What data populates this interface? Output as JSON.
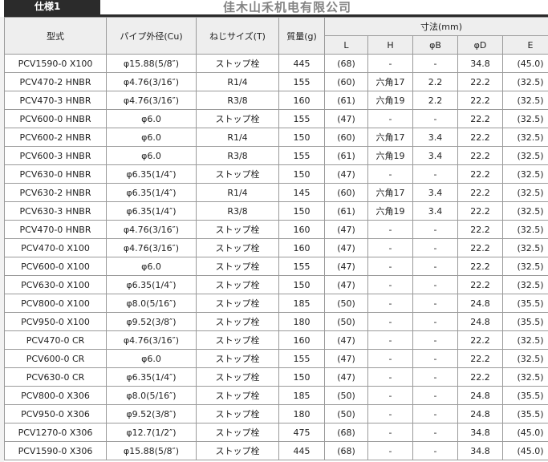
{
  "tab": {
    "label": "仕様1"
  },
  "headers": {
    "model": "型式",
    "pipe": "パイプ外径(Cu)",
    "thread": "ねじサイズ(T)",
    "mass": "質量(g)",
    "dims": "寸法(mm)",
    "sub": [
      "L",
      "H",
      "φB",
      "φD",
      "E"
    ]
  },
  "rows": [
    [
      "PCV1590-0 X100",
      "φ15.88(5/8″)",
      "ストップ栓",
      "445",
      "(68)",
      "-",
      "-",
      "34.8",
      "(45.0)"
    ],
    [
      "PCV470-2 HNBR",
      "φ4.76(3/16″)",
      "R1/4",
      "155",
      "(60)",
      "六角17",
      "2.2",
      "22.2",
      "(32.5)"
    ],
    [
      "PCV470-3 HNBR",
      "φ4.76(3/16″)",
      "R3/8",
      "160",
      "(61)",
      "六角19",
      "2.2",
      "22.2",
      "(32.5)"
    ],
    [
      "PCV600-0 HNBR",
      "φ6.0",
      "ストップ栓",
      "155",
      "(47)",
      "-",
      "-",
      "22.2",
      "(32.5)"
    ],
    [
      "PCV600-2 HNBR",
      "φ6.0",
      "R1/4",
      "150",
      "(60)",
      "六角17",
      "3.4",
      "22.2",
      "(32.5)"
    ],
    [
      "PCV600-3 HNBR",
      "φ6.0",
      "R3/8",
      "155",
      "(61)",
      "六角19",
      "3.4",
      "22.2",
      "(32.5)"
    ],
    [
      "PCV630-0 HNBR",
      "φ6.35(1/4″)",
      "ストップ栓",
      "150",
      "(47)",
      "-",
      "-",
      "22.2",
      "(32.5)"
    ],
    [
      "PCV630-2 HNBR",
      "φ6.35(1/4″)",
      "R1/4",
      "145",
      "(60)",
      "六角17",
      "3.4",
      "22.2",
      "(32.5)"
    ],
    [
      "PCV630-3 HNBR",
      "φ6.35(1/4″)",
      "R3/8",
      "150",
      "(61)",
      "六角19",
      "3.4",
      "22.2",
      "(32.5)"
    ],
    [
      "PCV470-0 HNBR",
      "φ4.76(3/16″)",
      "ストップ栓",
      "160",
      "(47)",
      "-",
      "-",
      "22.2",
      "(32.5)"
    ],
    [
      "PCV470-0 X100",
      "φ4.76(3/16″)",
      "ストップ栓",
      "160",
      "(47)",
      "-",
      "-",
      "22.2",
      "(32.5)"
    ],
    [
      "PCV600-0 X100",
      "φ6.0",
      "ストップ栓",
      "155",
      "(47)",
      "-",
      "-",
      "22.2",
      "(32.5)"
    ],
    [
      "PCV630-0 X100",
      "φ6.35(1/4″)",
      "ストップ栓",
      "150",
      "(47)",
      "-",
      "-",
      "22.2",
      "(32.5)"
    ],
    [
      "PCV800-0 X100",
      "φ8.0(5/16″)",
      "ストップ栓",
      "185",
      "(50)",
      "-",
      "-",
      "24.8",
      "(35.5)"
    ],
    [
      "PCV950-0 X100",
      "φ9.52(3/8″)",
      "ストップ栓",
      "180",
      "(50)",
      "-",
      "-",
      "24.8",
      "(35.5)"
    ],
    [
      "PCV470-0 CR",
      "φ4.76(3/16″)",
      "ストップ栓",
      "160",
      "(47)",
      "-",
      "-",
      "22.2",
      "(32.5)"
    ],
    [
      "PCV600-0 CR",
      "φ6.0",
      "ストップ栓",
      "155",
      "(47)",
      "-",
      "-",
      "22.2",
      "(32.5)"
    ],
    [
      "PCV630-0 CR",
      "φ6.35(1/4″)",
      "ストップ栓",
      "150",
      "(47)",
      "-",
      "-",
      "22.2",
      "(32.5)"
    ],
    [
      "PCV800-0 X306",
      "φ8.0(5/16″)",
      "ストップ栓",
      "185",
      "(50)",
      "-",
      "-",
      "24.8",
      "(35.5)"
    ],
    [
      "PCV950-0 X306",
      "φ9.52(3/8″)",
      "ストップ栓",
      "180",
      "(50)",
      "-",
      "-",
      "24.8",
      "(35.5)"
    ],
    [
      "PCV1270-0 X306",
      "φ12.7(1/2″)",
      "ストップ栓",
      "475",
      "(68)",
      "-",
      "-",
      "34.8",
      "(45.0)"
    ],
    [
      "PCV1590-0 X306",
      "φ15.88(5/8″)",
      "ストップ栓",
      "445",
      "(68)",
      "-",
      "-",
      "34.8",
      "(45.0)"
    ]
  ],
  "watermark": "佳木山禾机电有限公司"
}
